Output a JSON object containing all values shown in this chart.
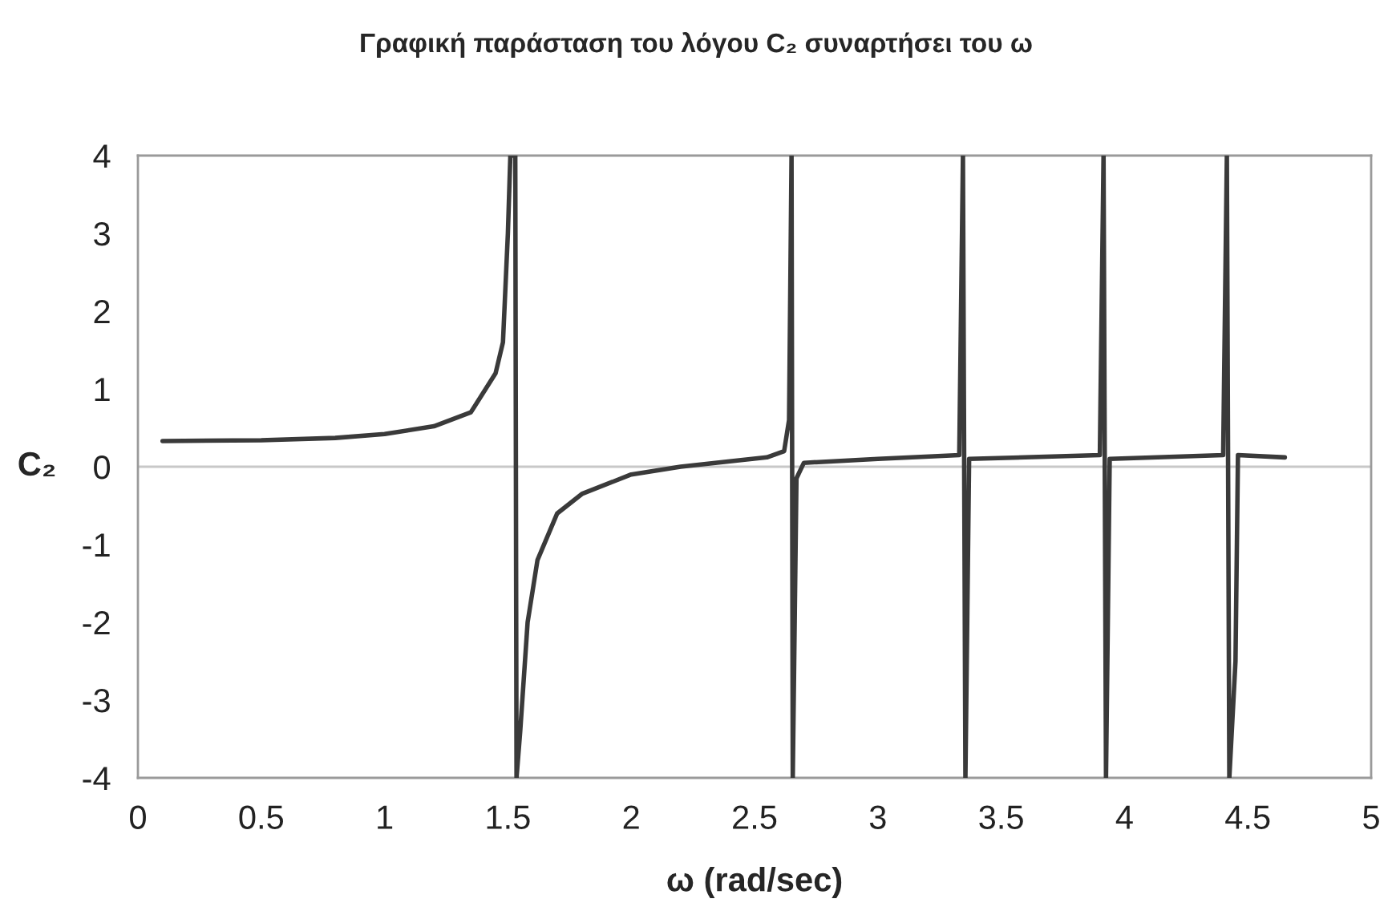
{
  "chart_data": {
    "type": "line",
    "title": "Γραφική παράσταση του λόγου C₂ συναρτήσει του ω",
    "xlabel": "ω (rad/sec)",
    "ylabel": "C₂",
    "x": [
      0.1,
      0.5,
      0.8,
      1.0,
      1.2,
      1.35,
      1.45,
      1.48,
      1.5,
      1.51,
      1.53,
      1.535,
      1.55,
      1.58,
      1.62,
      1.7,
      1.8,
      2.0,
      2.2,
      2.4,
      2.55,
      2.62,
      2.64,
      2.65,
      2.655,
      2.67,
      2.7,
      3.0,
      3.33,
      3.345,
      3.355,
      3.37,
      3.9,
      3.915,
      3.925,
      3.94,
      4.4,
      4.415,
      4.425,
      4.45,
      4.46,
      4.65
    ],
    "series": [
      {
        "color": "#3a3a3a",
        "values": [
          0.33,
          0.34,
          0.37,
          0.42,
          0.52,
          0.7,
          1.2,
          1.6,
          3,
          4,
          4,
          -4,
          -3.4,
          -2.0,
          -1.2,
          -0.6,
          -0.35,
          -0.1,
          0.0,
          0.07,
          0.12,
          0.2,
          0.6,
          4,
          -4,
          -0.15,
          0.05,
          0.1,
          0.15,
          4,
          -4,
          0.1,
          0.15,
          4,
          -4,
          0.1,
          0.15,
          4,
          -4,
          -2.5,
          0.15,
          0.12
        ]
      }
    ],
    "xlim": [
      0,
      5
    ],
    "xticks": [
      0,
      0.5,
      1,
      1.5,
      2,
      2.5,
      3,
      3.5,
      4,
      4.5,
      5
    ],
    "ylim": [
      -4,
      4
    ],
    "yticks": [
      -4,
      -3,
      -2,
      -1,
      0,
      1,
      2,
      3,
      4
    ],
    "ref_lines": [
      {
        "axis": "y",
        "value": 0,
        "color": "#c8c8c8"
      }
    ],
    "grid": false
  }
}
